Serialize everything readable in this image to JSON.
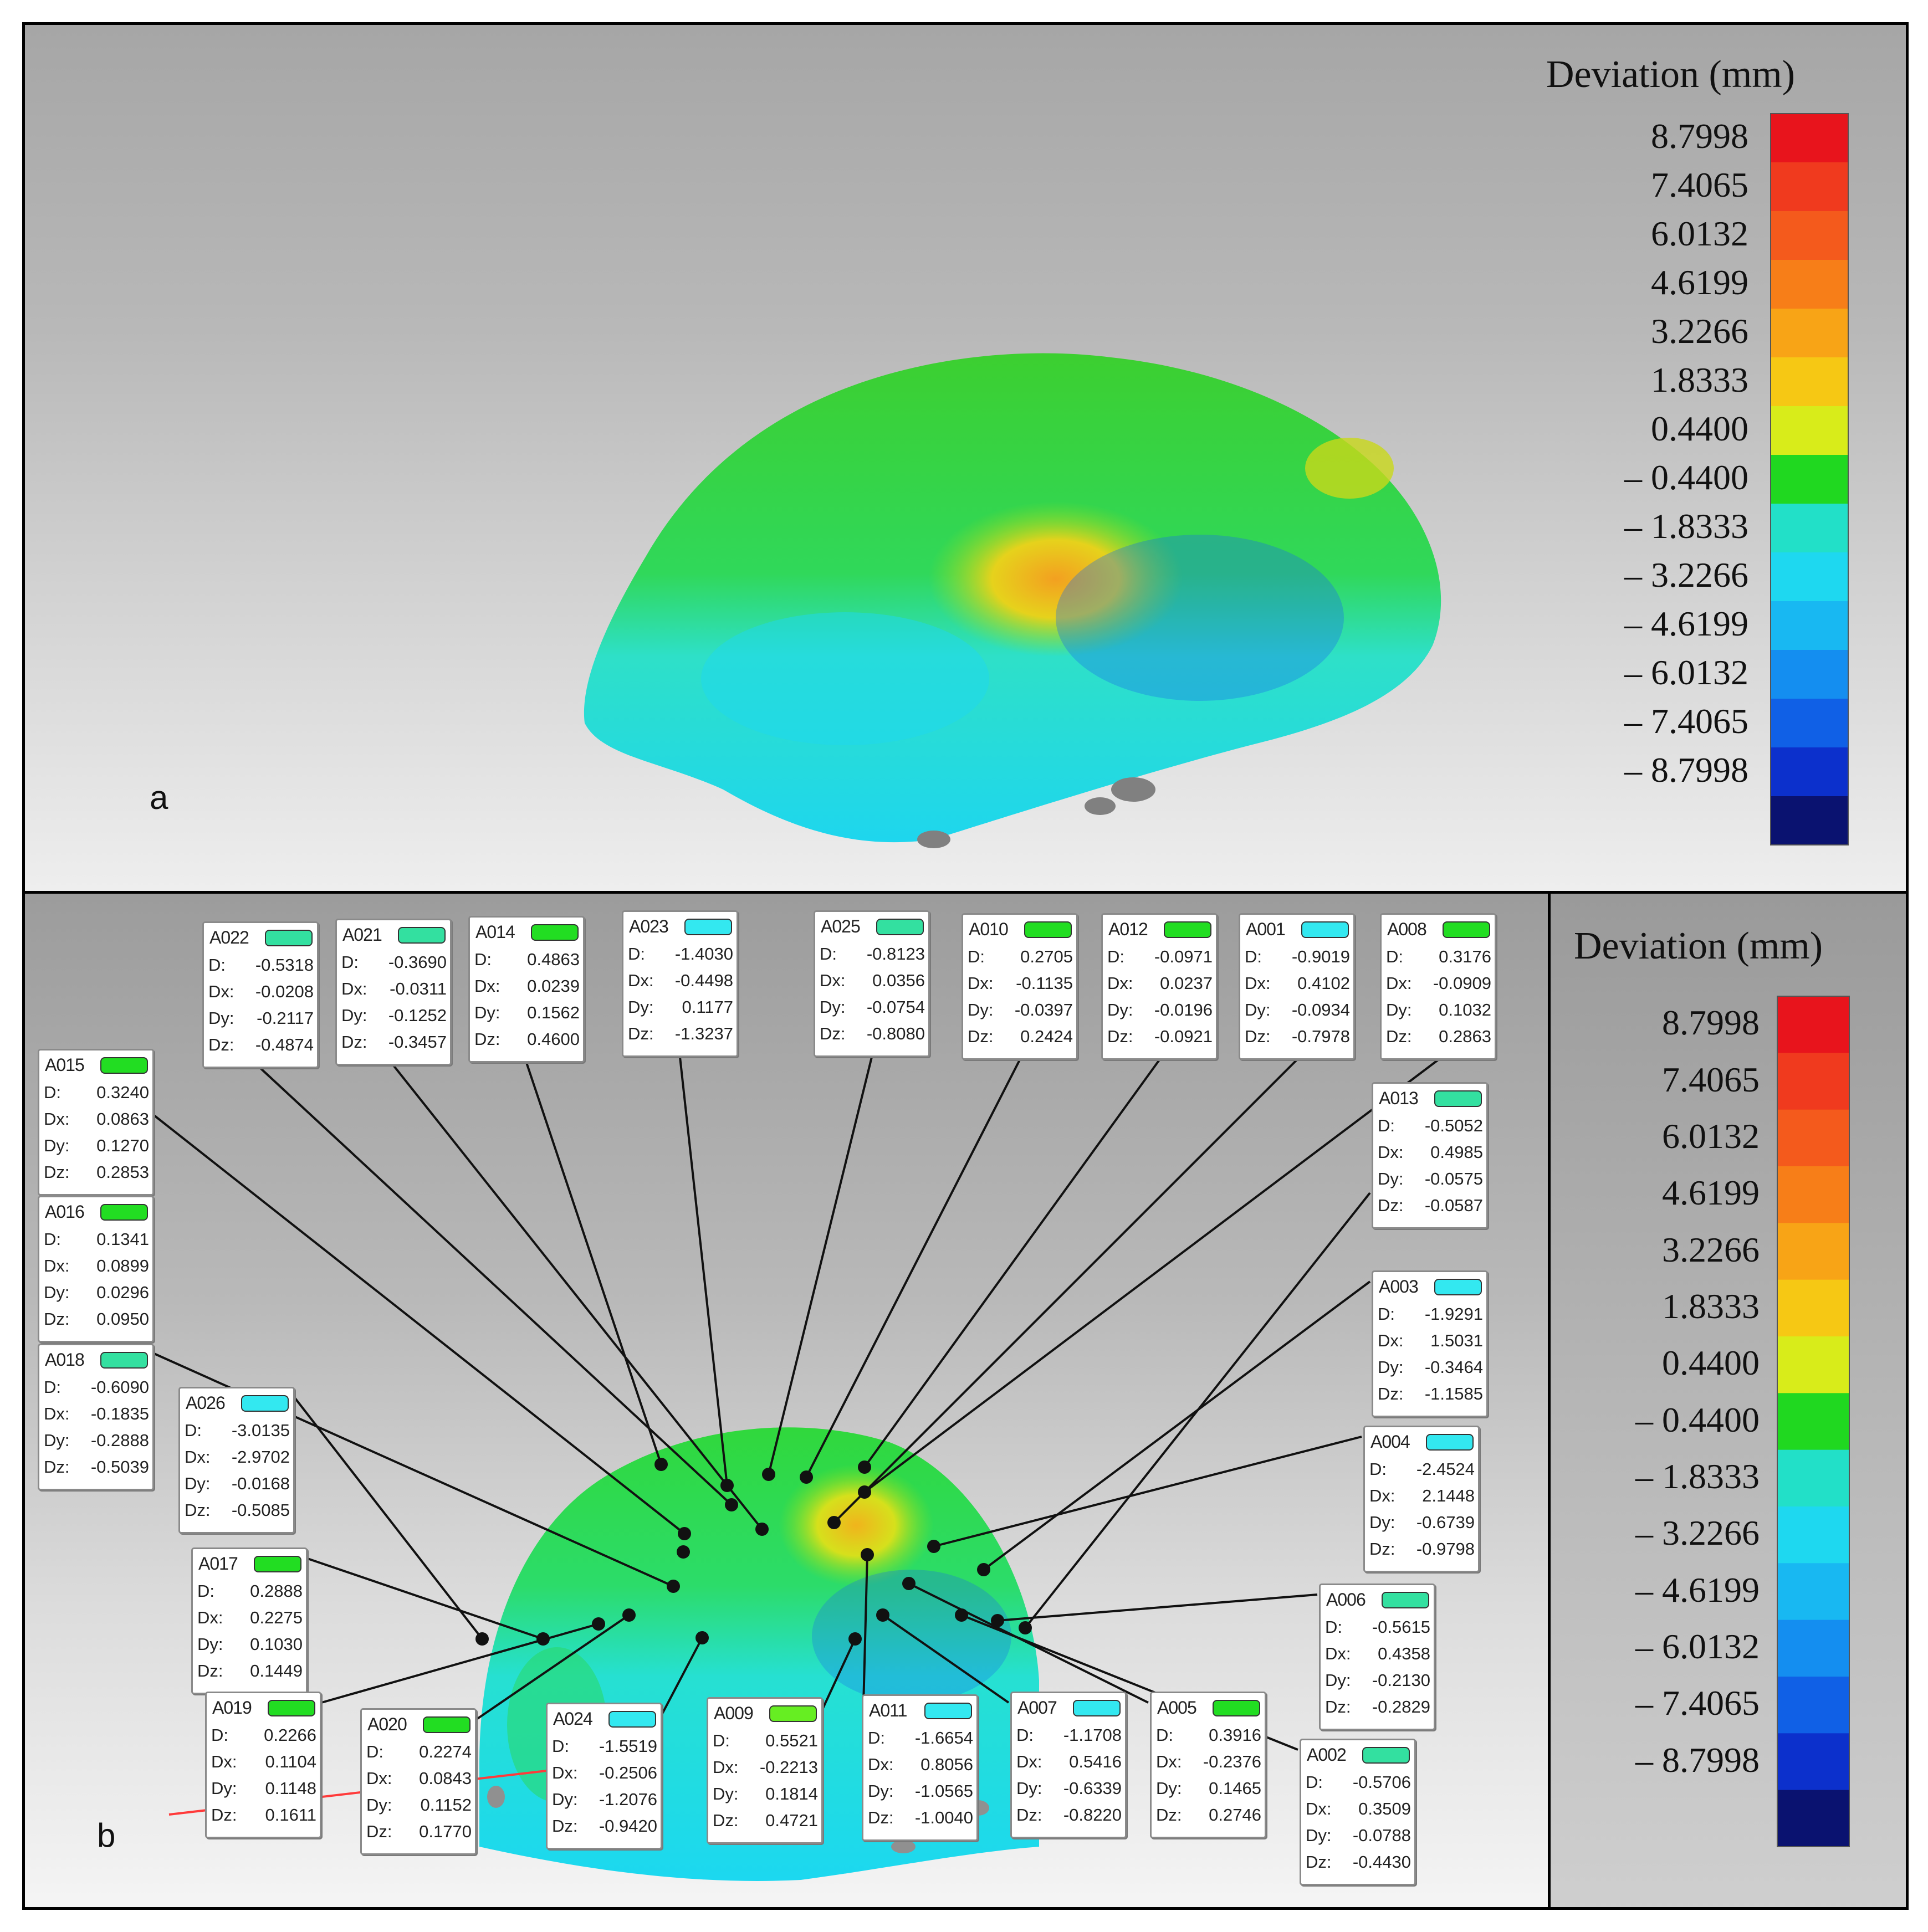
{
  "panel_a": {
    "label": "a",
    "legend_title": "Deviation (mm)",
    "legend_ticks": [
      "8.7998",
      "7.4065",
      "6.0132",
      "4.6199",
      "3.2266",
      "1.8333",
      "0.4400",
      "– 0.4400",
      "– 1.8333",
      "– 3.2266",
      "– 4.6199",
      "– 6.0132",
      "– 7.4065",
      "– 8.7998"
    ]
  },
  "panel_b": {
    "label": "b",
    "legend_title": "Deviation (mm)",
    "legend_ticks": [
      "8.7998",
      "7.4065",
      "6.0132",
      "4.6199",
      "3.2266",
      "1.8333",
      "0.4400",
      "– 0.4400",
      "– 1.8333",
      "– 3.2266",
      "– 4.6199",
      "– 6.0132",
      "– 7.4065",
      "– 8.7998"
    ],
    "row_labels": {
      "d": "D:",
      "dx": "Dx:",
      "dy": "Dy:",
      "dz": "Dz:"
    },
    "callouts": [
      {
        "id": "A022",
        "color": "#33e0a0",
        "d": "-0.5318",
        "dx": "-0.0208",
        "dy": "-0.2117",
        "dz": "-0.4874"
      },
      {
        "id": "A021",
        "color": "#33e0a0",
        "d": "-0.3690",
        "dx": "-0.0311",
        "dy": "-0.1252",
        "dz": "-0.3457"
      },
      {
        "id": "A014",
        "color": "#22dd22",
        "d": "0.4863",
        "dx": "0.0239",
        "dy": "0.1562",
        "dz": "0.4600"
      },
      {
        "id": "A023",
        "color": "#33e8f0",
        "d": "-1.4030",
        "dx": "-0.4498",
        "dy": "0.1177",
        "dz": "-1.3237"
      },
      {
        "id": "A025",
        "color": "#33e0a0",
        "d": "-0.8123",
        "dx": "0.0356",
        "dy": "-0.0754",
        "dz": "-0.8080"
      },
      {
        "id": "A010",
        "color": "#22dd22",
        "d": "0.2705",
        "dx": "-0.1135",
        "dy": "-0.0397",
        "dz": "0.2424"
      },
      {
        "id": "A012",
        "color": "#22dd22",
        "d": "-0.0971",
        "dx": "0.0237",
        "dy": "-0.0196",
        "dz": "-0.0921"
      },
      {
        "id": "A001",
        "color": "#33e8f0",
        "d": "-0.9019",
        "dx": "0.4102",
        "dy": "-0.0934",
        "dz": "-0.7978"
      },
      {
        "id": "A008",
        "color": "#22dd22",
        "d": "0.3176",
        "dx": "-0.0909",
        "dy": "0.1032",
        "dz": "0.2863"
      },
      {
        "id": "A015",
        "color": "#22dd22",
        "d": "0.3240",
        "dx": "0.0863",
        "dy": "0.1270",
        "dz": "0.2853"
      },
      {
        "id": "A016",
        "color": "#22dd22",
        "d": "0.1341",
        "dx": "0.0899",
        "dy": "0.0296",
        "dz": "0.0950"
      },
      {
        "id": "A018",
        "color": "#33e0a0",
        "d": "-0.6090",
        "dx": "-0.1835",
        "dy": "-0.2888",
        "dz": "-0.5039"
      },
      {
        "id": "A026",
        "color": "#33e8f0",
        "d": "-3.0135",
        "dx": "-2.9702",
        "dy": "-0.0168",
        "dz": "-0.5085"
      },
      {
        "id": "A017",
        "color": "#22dd22",
        "d": "0.2888",
        "dx": "0.2275",
        "dy": "0.1030",
        "dz": "0.1449"
      },
      {
        "id": "A019",
        "color": "#22dd22",
        "d": "0.2266",
        "dx": "0.1104",
        "dy": "0.1148",
        "dz": "0.1611"
      },
      {
        "id": "A020",
        "color": "#22dd22",
        "d": "0.2274",
        "dx": "0.0843",
        "dy": "0.1152",
        "dz": "0.1770"
      },
      {
        "id": "A024",
        "color": "#33e8f0",
        "d": "-1.5519",
        "dx": "-0.2506",
        "dy": "-1.2076",
        "dz": "-0.9420"
      },
      {
        "id": "A009",
        "color": "#66ee22",
        "d": "0.5521",
        "dx": "-0.2213",
        "dy": "0.1814",
        "dz": "0.4721"
      },
      {
        "id": "A011",
        "color": "#33e8f0",
        "d": "-1.6654",
        "dx": "0.8056",
        "dy": "-1.0565",
        "dz": "-1.0040"
      },
      {
        "id": "A007",
        "color": "#33e8f0",
        "d": "-1.1708",
        "dx": "0.5416",
        "dy": "-0.6339",
        "dz": "-0.8220"
      },
      {
        "id": "A005",
        "color": "#22dd22",
        "d": "0.3916",
        "dx": "-0.2376",
        "dy": "0.1465",
        "dz": "0.2746"
      },
      {
        "id": "A002",
        "color": "#33e0a0",
        "d": "-0.5706",
        "dx": "0.3509",
        "dy": "-0.0788",
        "dz": "-0.4430"
      },
      {
        "id": "A006",
        "color": "#33e0a0",
        "d": "-0.5615",
        "dx": "0.4358",
        "dy": "-0.2130",
        "dz": "-0.2829"
      },
      {
        "id": "A004",
        "color": "#33e8f0",
        "d": "-2.4524",
        "dx": "2.1448",
        "dy": "-0.6739",
        "dz": "-0.9798"
      },
      {
        "id": "A003",
        "color": "#33e8f0",
        "d": "-1.9291",
        "dx": "1.5031",
        "dy": "-0.3464",
        "dz": "-1.1585"
      },
      {
        "id": "A013",
        "color": "#33e0a0",
        "d": "-0.5052",
        "dx": "0.4985",
        "dy": "-0.0575",
        "dz": "-0.0587"
      }
    ]
  },
  "colormap": [
    "#e8141c",
    "#f03a1e",
    "#f45a1c",
    "#f77e18",
    "#f8a416",
    "#f6c814",
    "#d8ec1a",
    "#20d820",
    "#22e0c8",
    "#1ed8f0",
    "#18b8f2",
    "#148ef0",
    "#1060e6",
    "#0c30cc",
    "#0a1270"
  ]
}
